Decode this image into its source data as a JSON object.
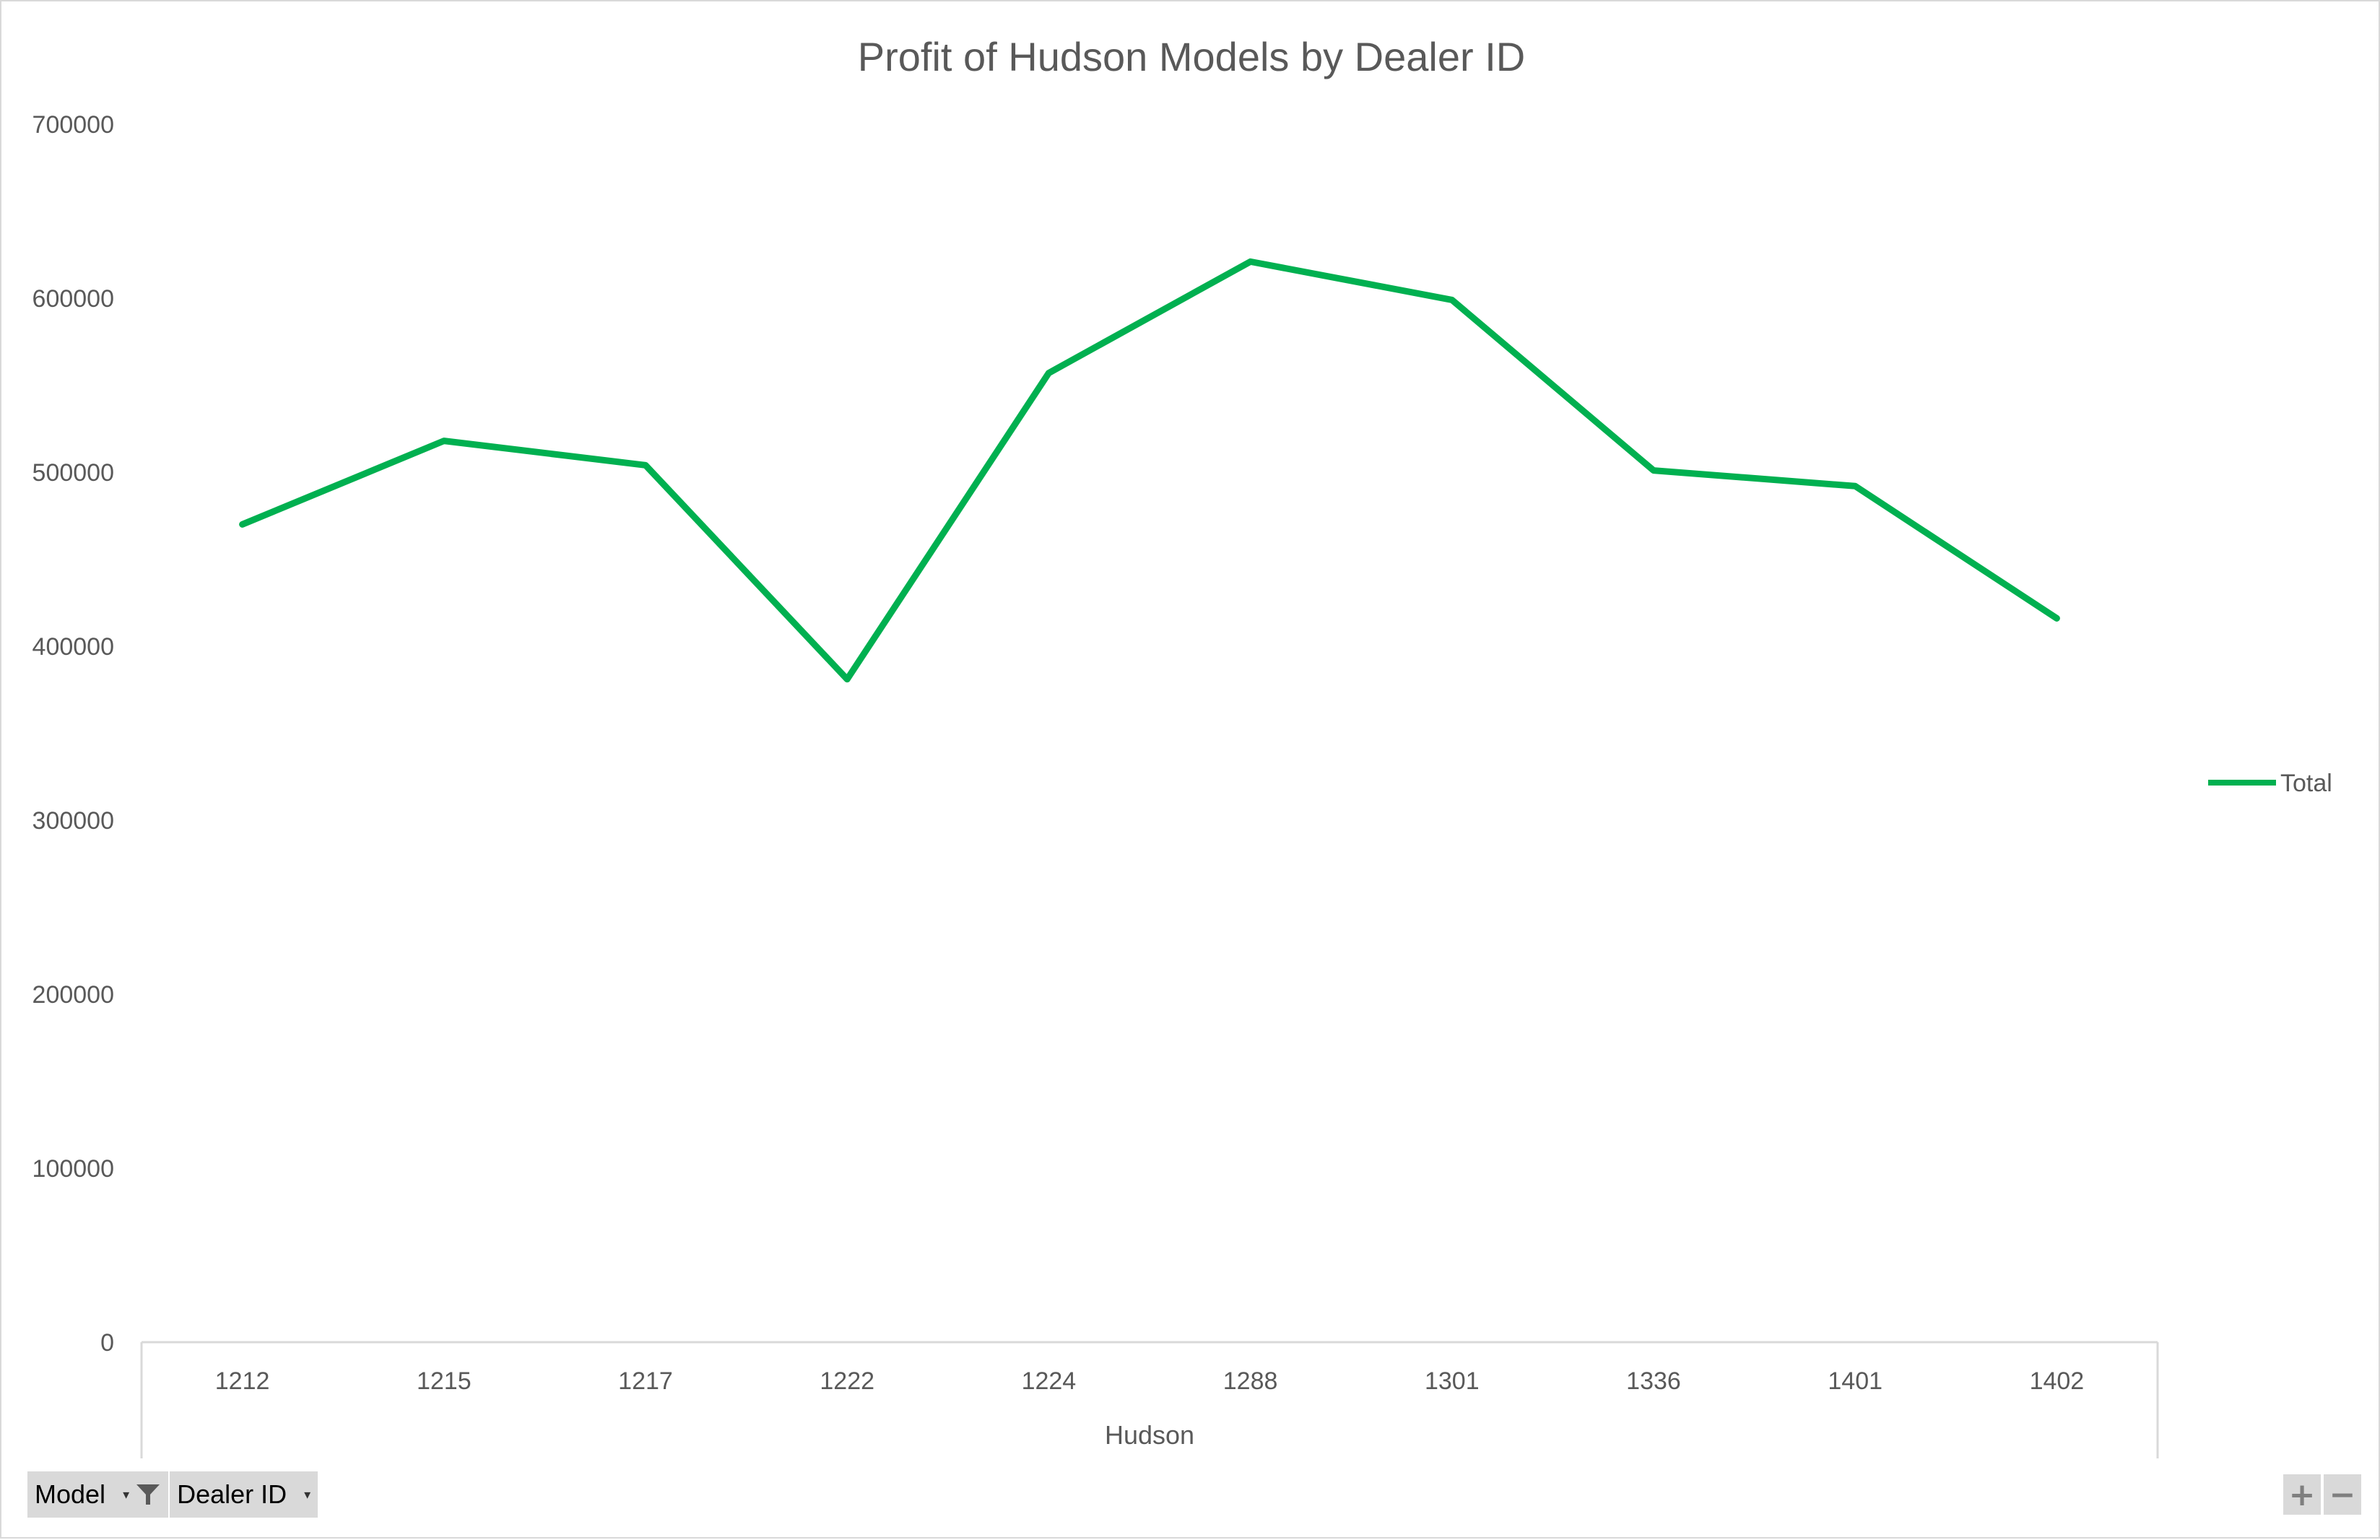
{
  "chart_data": {
    "type": "line",
    "title": "Profit of Hudson Models by Dealer ID",
    "xlabel": "Hudson",
    "ylabel": "",
    "categories": [
      "1212",
      "1215",
      "1217",
      "1222",
      "1224",
      "1288",
      "1301",
      "1336",
      "1401",
      "1402"
    ],
    "series": [
      {
        "name": "Total",
        "color": "#00b050",
        "values": [
          470000,
          518000,
          504000,
          381000,
          557000,
          621000,
          599000,
          501000,
          492000,
          416000
        ]
      }
    ],
    "ylim": [
      0,
      700000
    ],
    "yticks": [
      "0",
      "100000",
      "200000",
      "300000",
      "400000",
      "500000",
      "600000",
      "700000"
    ],
    "grid": false,
    "legend": "right"
  },
  "pivot_buttons": [
    {
      "label": "Model",
      "icon": "filter-icon"
    },
    {
      "label": "Dealer ID",
      "icon": "dropdown-arrow-icon"
    }
  ],
  "zoom": {
    "plus": "+",
    "minus": "−"
  },
  "colors": {
    "axis": "#d9d9d9",
    "text": "#595959",
    "button": "#d9d9d9"
  }
}
